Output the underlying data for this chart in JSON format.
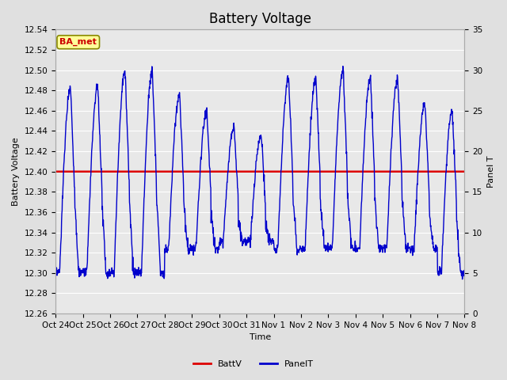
{
  "title": "Battery Voltage",
  "xlabel": "Time",
  "ylabel_left": "Battery Voltage",
  "ylabel_right": "Panel T",
  "ylim_left": [
    12.26,
    12.54
  ],
  "ylim_right": [
    0,
    35
  ],
  "yticks_left": [
    12.26,
    12.28,
    12.3,
    12.32,
    12.34,
    12.36,
    12.38,
    12.4,
    12.42,
    12.44,
    12.46,
    12.48,
    12.5,
    12.52,
    12.54
  ],
  "yticks_right": [
    0,
    5,
    10,
    15,
    20,
    25,
    30,
    35
  ],
  "xtick_labels": [
    "Oct 24",
    "Oct 25",
    "Oct 26",
    "Oct 27",
    "Oct 28",
    "Oct 29",
    "Oct 30",
    "Oct 31",
    "Nov 1",
    "Nov 2",
    "Nov 3",
    "Nov 4",
    "Nov 5",
    "Nov 6",
    "Nov 7",
    "Nov 8"
  ],
  "batt_v": 12.4,
  "batt_color": "#dd0000",
  "panel_color": "#0000cc",
  "fig_bg_color": "#e0e0e0",
  "plot_bg_color": "#e8e8e8",
  "grid_color": "#ffffff",
  "annotation_text": "BA_met",
  "annotation_bg": "#ffff99",
  "annotation_fg": "#cc0000",
  "legend_labels": [
    "BattV",
    "PanelT"
  ],
  "title_fontsize": 12,
  "n_days": 15
}
